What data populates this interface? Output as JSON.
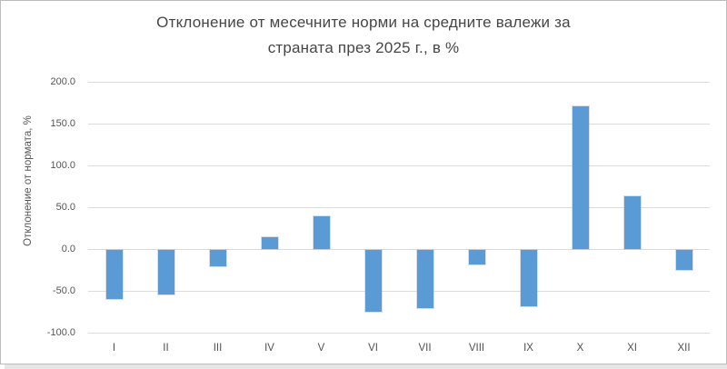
{
  "title": {
    "line1": "Отклонение от месечните норми на средните валежи за",
    "line2": "страната през 2025 г., в %"
  },
  "y_axis": {
    "label": "Отклонение от нормата, %",
    "tick_labels": [
      "200.0",
      "150.0",
      "100.0",
      "50.0",
      "0.0",
      "-50.0",
      "-100.0"
    ],
    "tick_values": [
      200,
      150,
      100,
      50,
      0,
      -50,
      -100
    ]
  },
  "x_axis": {
    "categories": [
      "I",
      "II",
      "III",
      "IV",
      "V",
      "VI",
      "VII",
      "VIII",
      "IX",
      "X",
      "XI",
      "XII"
    ]
  },
  "chart_data": {
    "type": "bar",
    "title": "Отклонение от месечните норми на средните валежи за страната през 2025 г., в %",
    "categories": [
      "I",
      "II",
      "III",
      "IV",
      "V",
      "VI",
      "VII",
      "VIII",
      "IX",
      "X",
      "XI",
      "XII"
    ],
    "values": [
      -59,
      -53,
      -20,
      14,
      39,
      -74,
      -70,
      -17,
      -67,
      171,
      63,
      -24
    ],
    "xlabel": "",
    "ylabel": "Отклонение от нормата, %",
    "ylim": [
      -100,
      200
    ],
    "grid": true,
    "legend": false,
    "bar_color": "#5B9BD5",
    "gridline_color": "#DCDCDC",
    "tick_text_color": "#555555",
    "title_color": "#464646",
    "background_color": "#FFFFFF"
  }
}
